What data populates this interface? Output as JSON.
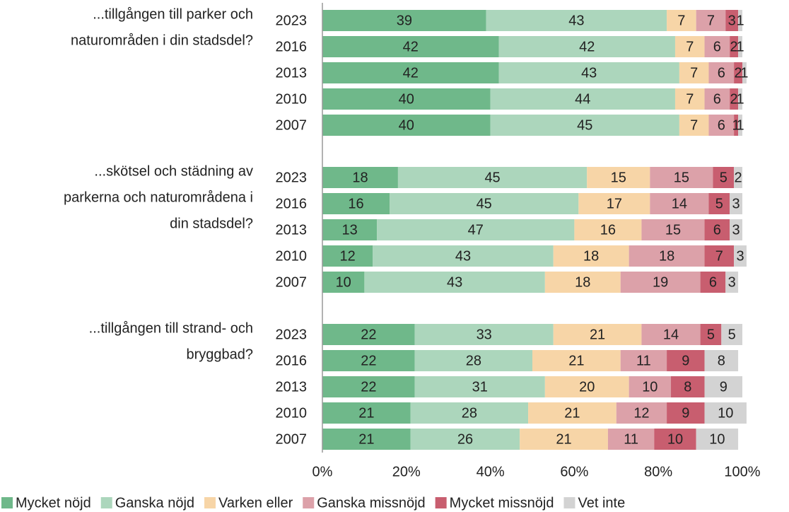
{
  "chart_data": {
    "type": "bar",
    "orientation": "horizontal",
    "stacked": true,
    "xlim": [
      0,
      100
    ],
    "xticks": [
      {
        "value": 0,
        "label": "0%"
      },
      {
        "value": 20,
        "label": "20%"
      },
      {
        "value": 40,
        "label": "40%"
      },
      {
        "value": 60,
        "label": "60%"
      },
      {
        "value": 80,
        "label": "80%"
      },
      {
        "value": 100,
        "label": "100%"
      }
    ],
    "groups": [
      {
        "label": [
          "...tillgången till parker och",
          "naturområden i din stadsdel?"
        ],
        "categories": [
          "2023",
          "2016",
          "2013",
          "2010",
          "2007"
        ]
      },
      {
        "label": [
          "...skötsel och städning av",
          "parkerna och naturområdena i",
          "din stadsdel?"
        ],
        "categories": [
          "2023",
          "2016",
          "2013",
          "2010",
          "2007"
        ]
      },
      {
        "label": [
          "...tillgången till strand- och",
          "bryggbad?"
        ],
        "categories": [
          "2023",
          "2016",
          "2013",
          "2010",
          "2007"
        ]
      }
    ],
    "series": [
      {
        "name": "Mycket nöjd",
        "color": "#6fb88a",
        "values": [
          [
            39,
            42,
            42,
            40,
            40
          ],
          [
            18,
            16,
            13,
            12,
            10
          ],
          [
            22,
            22,
            22,
            21,
            21
          ]
        ]
      },
      {
        "name": "Ganska nöjd",
        "color": "#acd6bc",
        "values": [
          [
            43,
            42,
            43,
            44,
            45
          ],
          [
            45,
            45,
            47,
            43,
            43
          ],
          [
            33,
            28,
            31,
            28,
            26
          ]
        ]
      },
      {
        "name": "Varken eller",
        "color": "#f7d5a7",
        "values": [
          [
            7,
            7,
            7,
            7,
            7
          ],
          [
            15,
            17,
            16,
            18,
            18
          ],
          [
            21,
            21,
            20,
            21,
            21
          ]
        ]
      },
      {
        "name": "Ganska missnöjd",
        "color": "#dca1a9",
        "values": [
          [
            7,
            6,
            6,
            6,
            6
          ],
          [
            15,
            14,
            15,
            18,
            19
          ],
          [
            14,
            11,
            10,
            12,
            11
          ]
        ]
      },
      {
        "name": "Mycket missnöjd",
        "color": "#c85e6f",
        "values": [
          [
            3,
            2,
            2,
            2,
            1
          ],
          [
            5,
            5,
            6,
            7,
            6
          ],
          [
            5,
            9,
            8,
            9,
            10
          ]
        ]
      },
      {
        "name": "Vet inte",
        "color": "#d3d3d3",
        "values": [
          [
            1,
            1,
            1,
            1,
            1
          ],
          [
            2,
            3,
            3,
            3,
            3
          ],
          [
            5,
            8,
            9,
            10,
            10
          ]
        ]
      }
    ]
  }
}
